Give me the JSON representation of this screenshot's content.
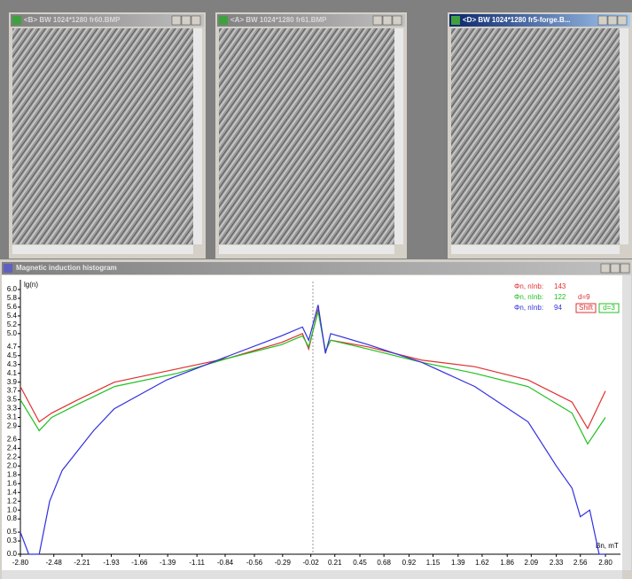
{
  "windows": [
    {
      "title": "<B> BW  1024*1280  fr60.BMP"
    },
    {
      "title": "<A> BW  1024*1280  fr61.BMP"
    },
    {
      "title": "<D> BW  1024*1280  fr5-forge.B..."
    }
  ],
  "chart_data": {
    "type": "line",
    "title": "Magnetic induction histogram",
    "y_label": "lg(n)",
    "x_label": "Bn, mT",
    "xlim": [
      -2.8,
      2.8
    ],
    "ylim": [
      0,
      6
    ],
    "xticks": [
      {
        "value": -2.8,
        "label": "-2.80"
      },
      -2.48,
      -2.21,
      -1.93,
      -1.66,
      -1.39,
      -1.11,
      -0.84,
      -0.56,
      -0.29,
      -0.02,
      0.21,
      0.45,
      0.68,
      0.92,
      1.15,
      1.39,
      1.62,
      1.86,
      2.09,
      2.33,
      2.56,
      {
        "value": 2.8,
        "label": "2.80"
      }
    ],
    "yticks": [
      {
        "value": 0,
        "label": "0.0"
      },
      0.3,
      0.5,
      0.8,
      {
        "value": 1,
        "label": "1.0"
      },
      1.2,
      1.4,
      1.6,
      1.8,
      {
        "value": 2,
        "label": "2.0"
      },
      2.2,
      2.4,
      2.6,
      2.9,
      3.1,
      3.3,
      3.5,
      3.7,
      3.9,
      4.1,
      4.3,
      4.5,
      4.7,
      {
        "value": 5,
        "label": "5.0"
      },
      5.2,
      5.4,
      5.6,
      5.8,
      {
        "value": 6,
        "label": "6.0"
      }
    ],
    "series": [
      {
        "name": "Φn, nInb:",
        "count": 143,
        "color": "#e03030",
        "x": [
          -2.8,
          -2.62,
          -2.5,
          -2.25,
          -1.9,
          -1.3,
          -0.8,
          -0.3,
          -0.1,
          -0.04,
          0.05,
          0.12,
          0.17,
          0.53,
          1.04,
          1.55,
          2.06,
          2.48,
          2.63,
          2.8
        ],
        "values": [
          3.8,
          3.0,
          3.2,
          3.5,
          3.9,
          4.2,
          4.45,
          4.8,
          5.0,
          4.65,
          5.55,
          4.6,
          4.85,
          4.7,
          4.4,
          4.25,
          3.95,
          3.45,
          2.85,
          3.7
        ]
      },
      {
        "name": "Φn, nInb:",
        "count": 122,
        "color": "#20c020",
        "x": [
          -2.8,
          -2.62,
          -2.5,
          -2.25,
          -1.9,
          -1.3,
          -0.8,
          -0.3,
          -0.1,
          -0.04,
          0.05,
          0.12,
          0.17,
          0.53,
          1.04,
          1.55,
          2.06,
          2.48,
          2.63,
          2.8
        ],
        "values": [
          3.5,
          2.8,
          3.1,
          3.4,
          3.8,
          4.1,
          4.45,
          4.75,
          4.95,
          4.7,
          5.5,
          4.6,
          4.85,
          4.65,
          4.35,
          4.1,
          3.8,
          3.2,
          2.5,
          3.1
        ]
      },
      {
        "name": "Φn, nInb:",
        "count": 94,
        "color": "#3030e0",
        "x": [
          -2.8,
          -2.72,
          -2.62,
          -2.52,
          -2.4,
          -2.1,
          -1.9,
          -1.4,
          -0.8,
          -0.3,
          -0.1,
          -0.04,
          0.05,
          0.12,
          0.17,
          0.53,
          1.04,
          1.55,
          2.06,
          2.33,
          2.48,
          2.56,
          2.65,
          2.74,
          2.8
        ],
        "values": [
          0.5,
          0,
          0,
          1.2,
          1.9,
          2.8,
          3.3,
          3.95,
          4.5,
          4.95,
          5.15,
          4.85,
          5.65,
          4.55,
          5.0,
          4.75,
          4.35,
          3.8,
          3.0,
          2.0,
          1.5,
          0.85,
          1.0,
          0,
          0
        ]
      }
    ],
    "annotation": "d=9",
    "buttons": [
      "Shift",
      "d=3"
    ]
  }
}
